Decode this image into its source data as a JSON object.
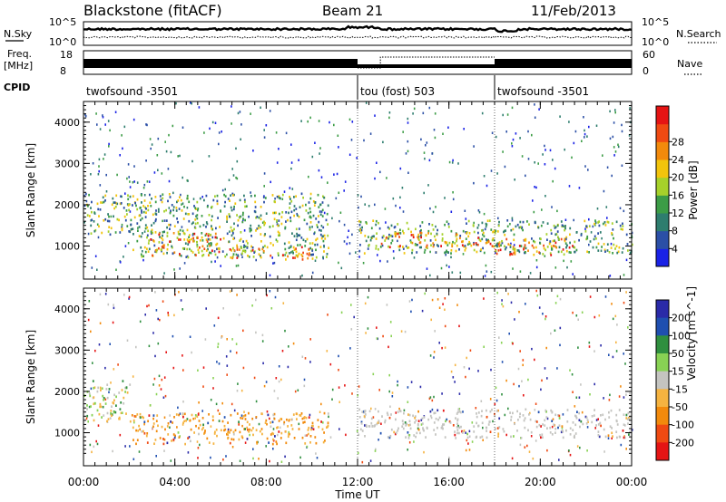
{
  "header": {
    "radar": "Blackstone (fitACF)",
    "beam": "Beam 21",
    "date": "11/Feb/2013"
  },
  "status_panel": {
    "nsky_label": "N.Sky",
    "nsky_ticks": [
      "10^5",
      "10^0"
    ],
    "nsearch_label": "N.Search",
    "nsearch_ticks": [
      "10^5",
      "10^0"
    ],
    "freq_label_line1": "Freq.",
    "freq_label_line2": "[MHz]",
    "freq_ticks": [
      "18",
      "8"
    ],
    "nave_label": "Nave",
    "nave_ticks": [
      "60",
      "0"
    ],
    "cpid_label": "CPID",
    "cpid_segments": [
      {
        "name": "twofsound -3501",
        "start_hour": 0,
        "end_hour": 12
      },
      {
        "name": "tou (fost) 503",
        "start_hour": 12,
        "end_hour": 18
      },
      {
        "name": "twofsound -3501",
        "start_hour": 18,
        "end_hour": 24
      }
    ],
    "nave_segments": [
      {
        "start_hour": 12,
        "end_hour": 13,
        "level": "low"
      },
      {
        "start_hour": 13,
        "end_hour": 18,
        "level": "high"
      }
    ]
  },
  "chart_data": [
    {
      "type": "heatmap",
      "title": "",
      "xlabel": "",
      "ylabel": "Slant Range [km]",
      "x_unit": "hour UT",
      "xlim": [
        0,
        24
      ],
      "ylim": [
        200,
        4500
      ],
      "y_ticks": [
        1000,
        2000,
        3000,
        4000
      ],
      "colorbar": {
        "label": "Power [dB]",
        "ticks": [
          "4",
          "8",
          "12",
          "16",
          "20",
          "24",
          "28"
        ],
        "colors": [
          "#1a22e6",
          "#2b4fa6",
          "#2e7d6e",
          "#3c9c46",
          "#a6d12a",
          "#f2c40c",
          "#f28a0c",
          "#ef4a12",
          "#e51414"
        ],
        "range": [
          0,
          32
        ]
      },
      "regions": [
        {
          "t0": 0.0,
          "t1": 2.0,
          "r0": 1300,
          "r1": 2300,
          "level": "mid"
        },
        {
          "t0": 2.0,
          "t1": 10.7,
          "r0": 750,
          "r1": 2300,
          "level": "mid"
        },
        {
          "t0": 2.8,
          "t1": 6.0,
          "r0": 800,
          "r1": 1350,
          "level": "high"
        },
        {
          "t0": 6.0,
          "t1": 10.0,
          "r0": 700,
          "r1": 1000,
          "level": "high"
        },
        {
          "t0": 12.0,
          "t1": 24.0,
          "r0": 850,
          "r1": 1650,
          "level": "mid"
        },
        {
          "t0": 13.0,
          "t1": 18.0,
          "r0": 1000,
          "r1": 1350,
          "level": "high"
        },
        {
          "t0": 18.0,
          "t1": 21.5,
          "r0": 800,
          "r1": 1200,
          "level": "high"
        }
      ]
    },
    {
      "type": "heatmap",
      "title": "",
      "xlabel": "Time UT",
      "ylabel": "Slant Range [km]",
      "x_unit": "hour UT",
      "xlim": [
        0,
        24
      ],
      "ylim": [
        200,
        4500
      ],
      "x_ticks": [
        "00:00",
        "04:00",
        "08:00",
        "12:00",
        "16:00",
        "20:00",
        "00:00"
      ],
      "y_ticks": [
        1000,
        2000,
        3000,
        4000
      ],
      "colorbar": {
        "label": "Velocity [m s^-1]",
        "ticks": [
          "200",
          "100",
          "50",
          "15",
          "-15",
          "-50",
          "-100",
          "-200"
        ],
        "colors": [
          "#2a2aa8",
          "#1f4fb0",
          "#2f8f3f",
          "#88d254",
          "#c4c4c0",
          "#f5b340",
          "#f28a0c",
          "#ef4a12",
          "#e51414"
        ],
        "range": [
          -250,
          250
        ]
      },
      "regions": [
        {
          "t0": 0.0,
          "t1": 2.0,
          "r0": 1300,
          "r1": 2300,
          "level": "mixed"
        },
        {
          "t0": 2.0,
          "t1": 10.7,
          "r0": 750,
          "r1": 1500,
          "level": "negative"
        },
        {
          "t0": 12.0,
          "t1": 24.0,
          "r0": 900,
          "r1": 1600,
          "level": "near-zero"
        }
      ]
    }
  ]
}
